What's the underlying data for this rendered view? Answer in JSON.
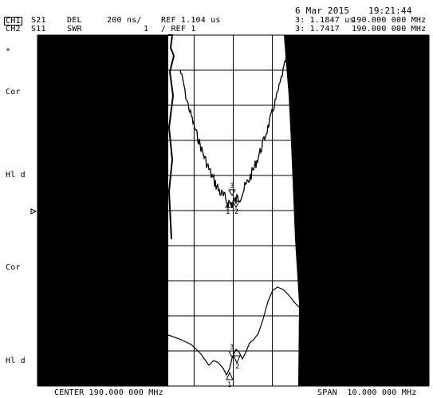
{
  "header": {
    "date": "6 Mar 2015",
    "time": "19:21:44",
    "ch1": {
      "channel": "CH1",
      "param": "S21",
      "format": "DEL",
      "scale": "200 ns/",
      "ref": "REF 1.104 us",
      "marker": "3: 1.1847 us",
      "freq": "190.000 000 MHz"
    },
    "ch2": {
      "channel": "CH2",
      "param": "S11",
      "format": "SWR",
      "scale": "1",
      "ref": "/ REF 1",
      "marker": "3: 1.7417",
      "freq": "190.000 000 MHz"
    }
  },
  "side_labels": {
    "star": "*",
    "upper_cor": "Cor",
    "upper_hld": "Hl d",
    "lower_cor": "Cor",
    "lower_hld": "Hl d"
  },
  "footer": {
    "center": "CENTER 190.000 000 MHz",
    "span": "SPAN  10.000 000 MHz"
  },
  "markers": {
    "upper": [
      "1",
      "2",
      "3"
    ],
    "lower": [
      "1",
      "2",
      "3"
    ]
  },
  "colors": {
    "background": "#ffffff",
    "trace": "#000000",
    "grid": "#000000"
  }
}
